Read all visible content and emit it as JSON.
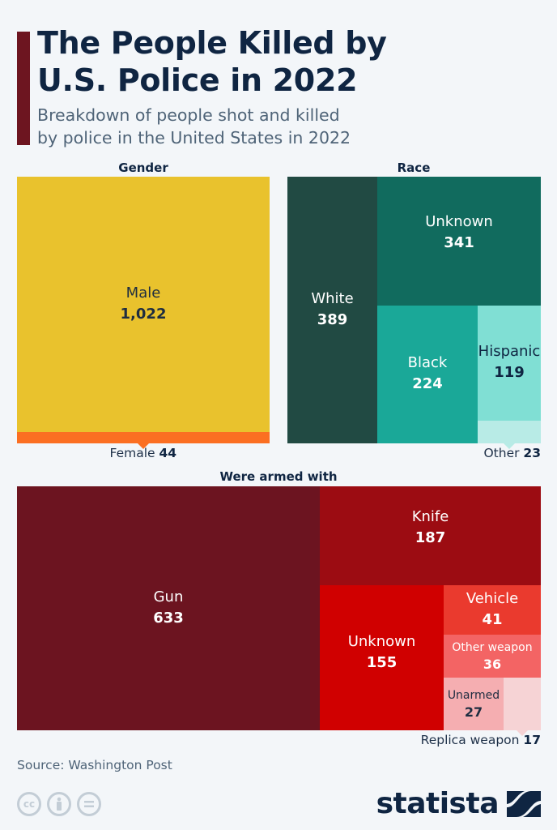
{
  "header": {
    "title_line1": "The People Killed by",
    "title_line2": "U.S. Police in 2022",
    "subtitle_line1": "Breakdown of people shot and killed",
    "subtitle_line2": "by police in the United States in 2022"
  },
  "colors": {
    "accent": "#6d1520",
    "title": "#0f2542"
  },
  "chart_data": [
    {
      "type": "treemap",
      "title": "Gender",
      "items": [
        {
          "label": "Male",
          "value": 1022,
          "display": "1,022",
          "color": "#e9c22d",
          "text_color": "#1e2d40"
        },
        {
          "label": "Female",
          "value": 44,
          "display": "44",
          "color": "#fb6f22",
          "callout": true
        }
      ]
    },
    {
      "type": "treemap",
      "title": "Race",
      "items": [
        {
          "label": "White",
          "value": 389,
          "display": "389",
          "color": "#214a43",
          "text_color": "#ffffff"
        },
        {
          "label": "Unknown",
          "value": 341,
          "display": "341",
          "color": "#116b5e",
          "text_color": "#ffffff"
        },
        {
          "label": "Black",
          "value": 224,
          "display": "224",
          "color": "#1aa898",
          "text_color": "#ffffff"
        },
        {
          "label": "Hispanic",
          "value": 119,
          "display": "119",
          "color": "#80dfd4",
          "text_color": "#0f2542"
        },
        {
          "label": "Other",
          "value": 23,
          "display": "23",
          "color": "#b8ebe6",
          "callout": true
        }
      ]
    },
    {
      "type": "treemap",
      "title": "Were armed with",
      "items": [
        {
          "label": "Gun",
          "value": 633,
          "display": "633",
          "color": "#6c1420",
          "text_color": "#ffffff"
        },
        {
          "label": "Knife",
          "value": 187,
          "display": "187",
          "color": "#9c0c12",
          "text_color": "#ffffff"
        },
        {
          "label": "Unknown",
          "value": 155,
          "display": "155",
          "color": "#d00000",
          "text_color": "#ffffff"
        },
        {
          "label": "Vehicle",
          "value": 41,
          "display": "41",
          "color": "#ea3a2e",
          "text_color": "#ffffff"
        },
        {
          "label": "Other weapon",
          "value": 36,
          "display": "36",
          "color": "#f36464",
          "text_color": "#ffffff"
        },
        {
          "label": "Unarmed",
          "value": 27,
          "display": "27",
          "color": "#f5aeb1",
          "text_color": "#1e2d40"
        },
        {
          "label": "Replica weapon",
          "value": 17,
          "display": "17",
          "color": "#f6d3d5",
          "callout": true
        }
      ]
    }
  ],
  "footer": {
    "source": "Source: Washington Post",
    "license_icons": [
      "cc-icon",
      "attribution-icon",
      "no-derivatives-icon"
    ],
    "logo_text": "statista"
  }
}
